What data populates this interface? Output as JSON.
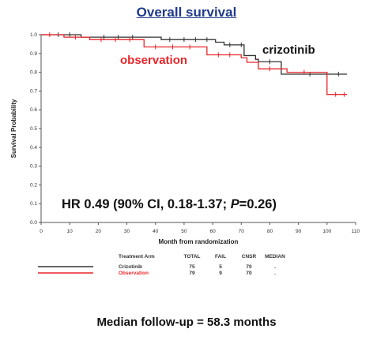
{
  "title": "Overall survival",
  "footer": "Median follow-up = 58.3 months",
  "chart_data": {
    "type": "line",
    "subtype": "kaplan-meier step",
    "xlabel": "Month from randomization",
    "ylabel": "Survival Probability",
    "xlim": [
      0,
      110
    ],
    "ylim": [
      0,
      1.0
    ],
    "xticks": [
      0,
      10,
      20,
      30,
      40,
      50,
      60,
      70,
      80,
      90,
      100,
      110
    ],
    "yticks": [
      0.0,
      0.1,
      0.2,
      0.3,
      0.4,
      0.5,
      0.6,
      0.7,
      0.8,
      0.9,
      1.0
    ],
    "grid": false,
    "annotation": "HR 0.49 (90% CI, 0.18-1.37; P=0.26)",
    "series": [
      {
        "name": "crizotinib",
        "color": "#333333",
        "steps": [
          [
            0,
            1.0
          ],
          [
            14,
            0.987
          ],
          [
            42,
            0.974
          ],
          [
            61,
            0.96
          ],
          [
            64,
            0.946
          ],
          [
            71,
            0.889
          ],
          [
            75,
            0.869
          ],
          [
            76,
            0.856
          ],
          [
            84,
            0.79
          ],
          [
            107,
            0.79
          ]
        ],
        "censored": [
          [
            6,
            1.0
          ],
          [
            10,
            1.0
          ],
          [
            22,
            0.987
          ],
          [
            27,
            0.987
          ],
          [
            32,
            0.987
          ],
          [
            45,
            0.974
          ],
          [
            50,
            0.974
          ],
          [
            54,
            0.974
          ],
          [
            58,
            0.974
          ],
          [
            66,
            0.946
          ],
          [
            70,
            0.946
          ],
          [
            80,
            0.856
          ],
          [
            94,
            0.79
          ],
          [
            104,
            0.79
          ]
        ]
      },
      {
        "name": "observation",
        "color": "#e8262a",
        "steps": [
          [
            0,
            1.0
          ],
          [
            8,
            0.987
          ],
          [
            17,
            0.974
          ],
          [
            36,
            0.935
          ],
          [
            58,
            0.893
          ],
          [
            70,
            0.877
          ],
          [
            72,
            0.853
          ],
          [
            76,
            0.818
          ],
          [
            86,
            0.8
          ],
          [
            100,
            0.682
          ],
          [
            107,
            0.682
          ]
        ],
        "censored": [
          [
            3,
            1.0
          ],
          [
            12,
            0.987
          ],
          [
            21,
            0.974
          ],
          [
            26,
            0.974
          ],
          [
            31,
            0.974
          ],
          [
            40,
            0.935
          ],
          [
            46,
            0.935
          ],
          [
            52,
            0.935
          ],
          [
            62,
            0.893
          ],
          [
            66,
            0.893
          ],
          [
            80,
            0.818
          ],
          [
            92,
            0.8
          ],
          [
            103,
            0.682
          ],
          [
            106,
            0.682
          ]
        ]
      }
    ],
    "table": {
      "headers": [
        "Treatment Arm",
        "TOTAL",
        "FAIL",
        "CNSR",
        "MEDIAN"
      ],
      "rows": [
        {
          "arm": "Crizotinib",
          "total": "75",
          "fail": "5",
          "cnsr": "70",
          "median": ".",
          "color": "#333333"
        },
        {
          "arm": "Observation",
          "total": "79",
          "fail": "9",
          "cnsr": "70",
          "median": ".",
          "color": "#e8262a"
        }
      ]
    }
  }
}
